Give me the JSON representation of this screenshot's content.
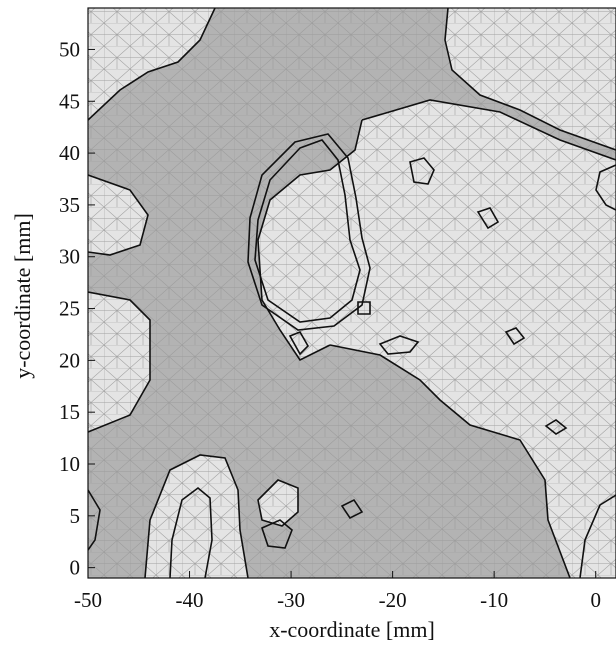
{
  "chart_data": {
    "type": "heatmap",
    "xlabel": "x-coordinate [mm]",
    "ylabel": "y-coordinate [mm]",
    "xlim": [
      -50,
      2
    ],
    "ylim": [
      -1,
      54
    ],
    "x_ticks": [
      "-50",
      "-40",
      "-30",
      "-20",
      "-10",
      "0"
    ],
    "y_ticks": [
      "0",
      "5",
      "10",
      "15",
      "20",
      "25",
      "30",
      "35",
      "40",
      "45",
      "50"
    ],
    "grid": false,
    "colors": {
      "dark_region": "#b3b3b3",
      "light_region": "#e4e4e4",
      "mesh_line": "#9a9a9a",
      "contour_line": "#111111"
    }
  }
}
